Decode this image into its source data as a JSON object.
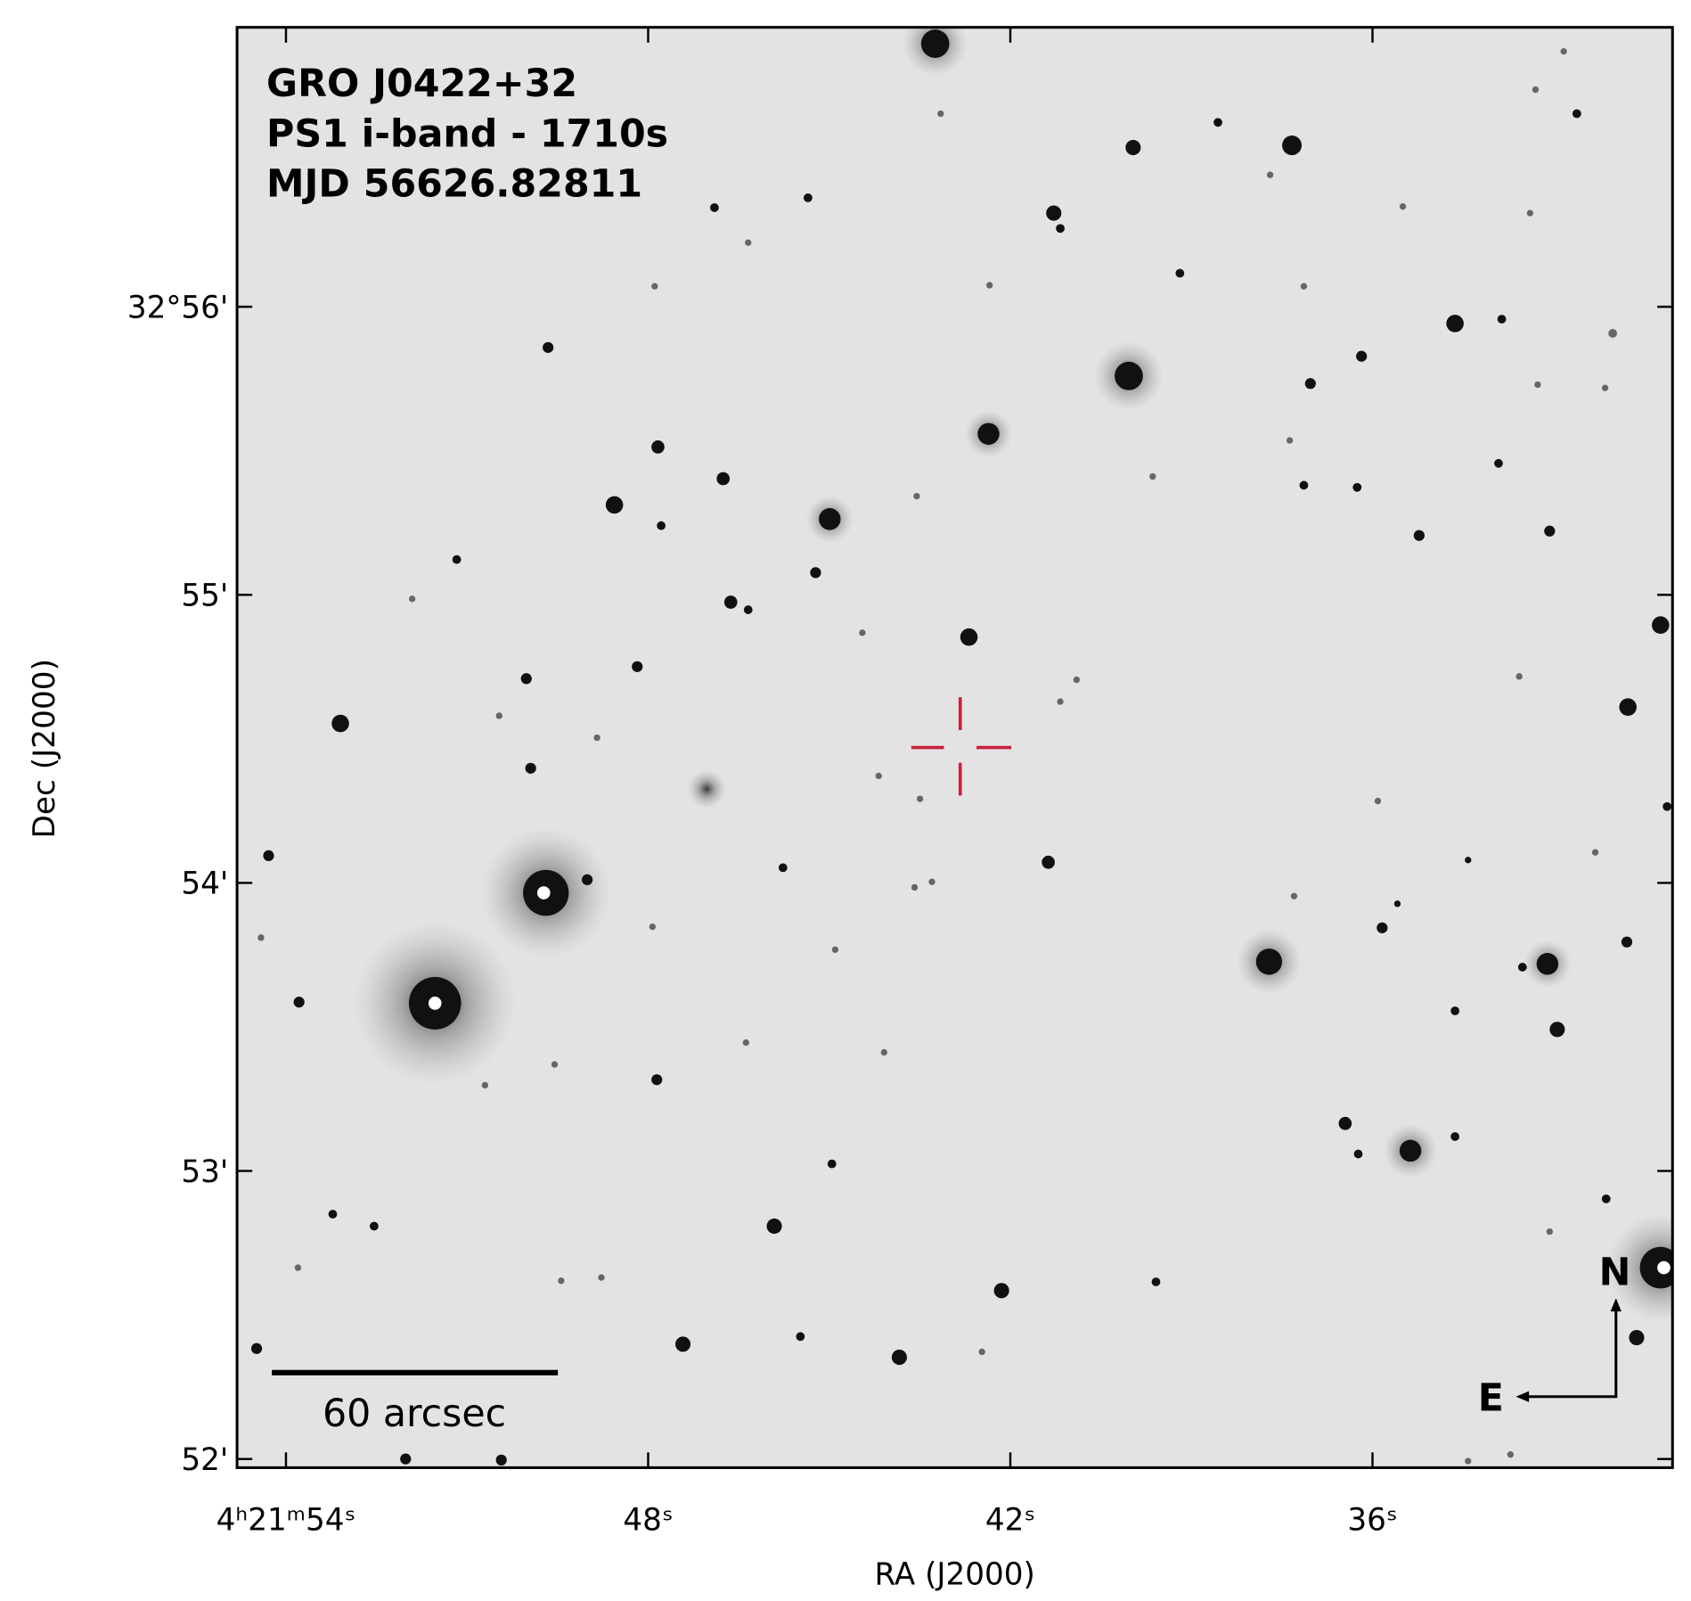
{
  "image": {
    "title_lines": [
      "GRO J0422+32",
      "PS1 i-band - 1710s",
      "MJD 56626.82811"
    ],
    "scale_bar": "60 arcsec",
    "compass": {
      "north": "N",
      "east": "E"
    }
  },
  "axes": {
    "xlabel": "RA (J2000)",
    "ylabel": "Dec (J2000)",
    "xlim": [
      54.81,
      31.03
    ],
    "xticks": [
      {
        "value": 54,
        "label": "4ʰ21ᵐ54ˢ"
      },
      {
        "value": 48,
        "label": "48ˢ"
      },
      {
        "value": 42,
        "label": "42ˢ"
      },
      {
        "value": 36,
        "label": "36ˢ"
      }
    ],
    "ylim": [
      51.97,
      56.97
    ],
    "yticks": [
      {
        "value": 56,
        "label": "32°56'"
      },
      {
        "value": 55,
        "label": "55'"
      },
      {
        "value": 54,
        "label": "54'"
      },
      {
        "value": 53,
        "label": "53'"
      },
      {
        "value": 52,
        "label": "52'"
      }
    ]
  }
}
